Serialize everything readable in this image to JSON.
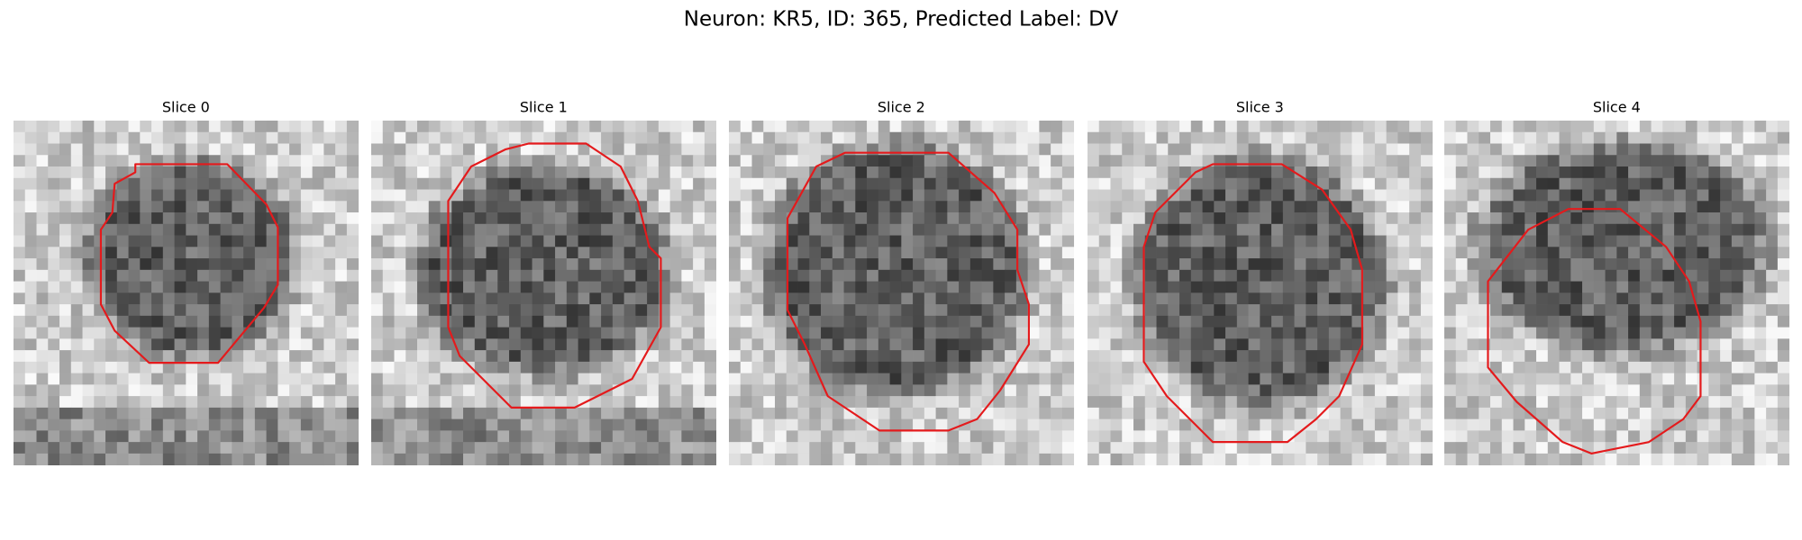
{
  "title": "Neuron: KR5, ID: 365, Predicted Label: DV",
  "panels": [
    {
      "title": "Slice 0"
    },
    {
      "title": "Slice 1"
    },
    {
      "title": "Slice 2"
    },
    {
      "title": "Slice 3"
    },
    {
      "title": "Slice 4"
    }
  ]
}
